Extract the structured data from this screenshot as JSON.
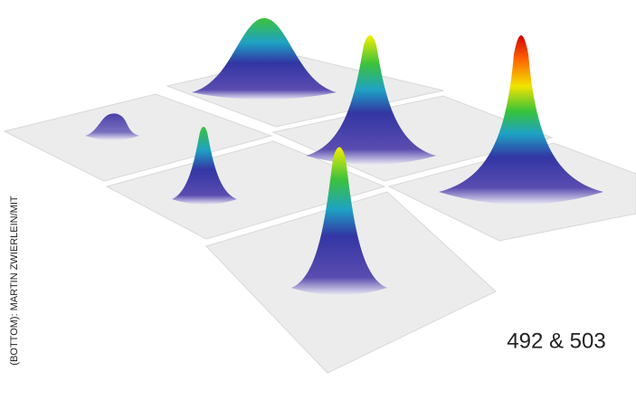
{
  "credit": "(BOTTOM): MARTIN ZWIERLEIN/MIT",
  "caption": "492 & 503"
}
